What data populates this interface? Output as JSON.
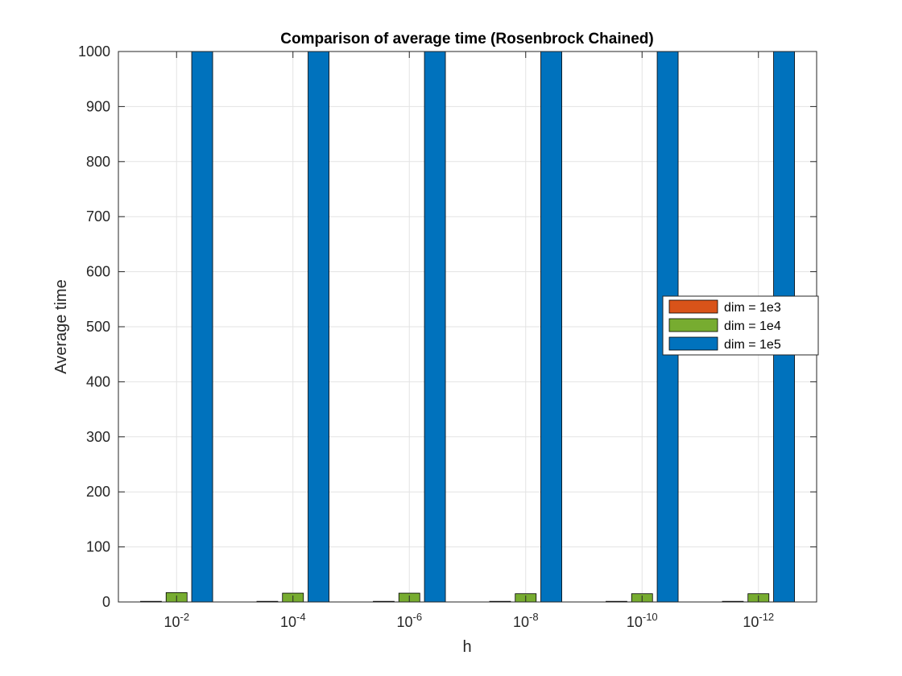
{
  "chart_data": {
    "type": "bar",
    "title": "Comparison of average time (Rosenbrock Chained)",
    "xlabel": "h",
    "ylabel": "Average time",
    "categories": [
      {
        "base": "10",
        "exp": "-2"
      },
      {
        "base": "10",
        "exp": "-4"
      },
      {
        "base": "10",
        "exp": "-6"
      },
      {
        "base": "10",
        "exp": "-8"
      },
      {
        "base": "10",
        "exp": "-10"
      },
      {
        "base": "10",
        "exp": "-12"
      }
    ],
    "series": [
      {
        "name": "dim = 1e3",
        "color": "#D95319",
        "values": [
          0.6,
          0.6,
          0.6,
          0.6,
          0.6,
          0.6
        ]
      },
      {
        "name": "dim = 1e4",
        "color": "#77AC30",
        "values": [
          17,
          16,
          16,
          15,
          15,
          15
        ]
      },
      {
        "name": "dim = 1e5",
        "color": "#0072BD",
        "values": [
          1000,
          1000,
          1000,
          1000,
          1000,
          1000
        ]
      }
    ],
    "ylim": [
      0,
      1000
    ],
    "yticks": [
      "0",
      "100",
      "200",
      "300",
      "400",
      "500",
      "600",
      "700",
      "800",
      "900",
      "1000"
    ],
    "grid": true,
    "legend_position": "right"
  }
}
